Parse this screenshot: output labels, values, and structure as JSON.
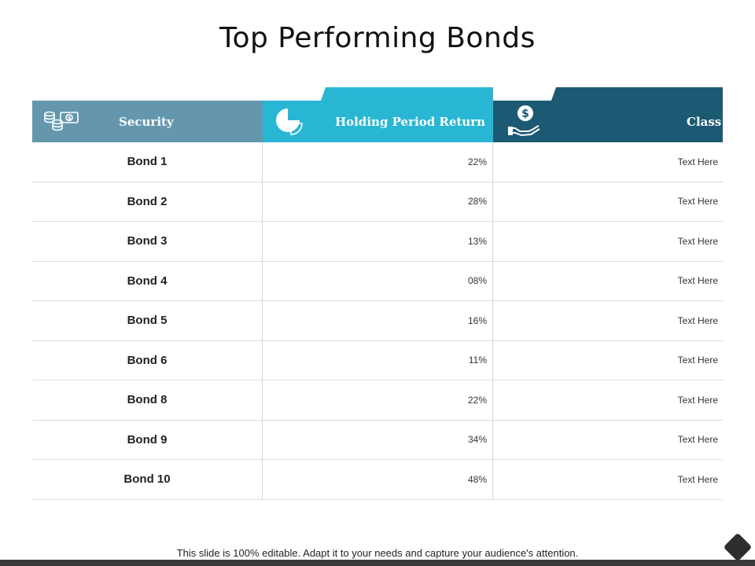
{
  "slide": {
    "title": "Top Performing Bonds",
    "footer": "This slide is 100% editable. Adapt it to your needs and capture your audience's attention."
  },
  "table": {
    "headers": {
      "security": {
        "label": "Security",
        "icon": "money-coins-icon"
      },
      "holding_period_return": {
        "label": "Holding Period Return",
        "icon": "pie-chart-icon"
      },
      "class": {
        "label": "Class",
        "icon": "hand-dollar-icon"
      }
    },
    "rows": [
      {
        "security": "Bond 1",
        "return": "22%",
        "class": "Text Here"
      },
      {
        "security": "Bond 2",
        "return": "28%",
        "class": "Text Here"
      },
      {
        "security": "Bond 3",
        "return": "13%",
        "class": "Text Here"
      },
      {
        "security": "Bond 4",
        "return": "08%",
        "class": "Text Here"
      },
      {
        "security": "Bond 5",
        "return": "16%",
        "class": "Text Here"
      },
      {
        "security": "Bond 6",
        "return": "11%",
        "class": "Text Here"
      },
      {
        "security": "Bond 8",
        "return": "22%",
        "class": "Text Here"
      },
      {
        "security": "Bond 9",
        "return": "34%",
        "class": "Text Here"
      },
      {
        "security": "Bond 10",
        "return": "48%",
        "class": "Text Here"
      }
    ]
  },
  "colors": {
    "security_header": "#6497ad",
    "return_header": "#28b6d4",
    "class_header": "#1c5a74"
  }
}
